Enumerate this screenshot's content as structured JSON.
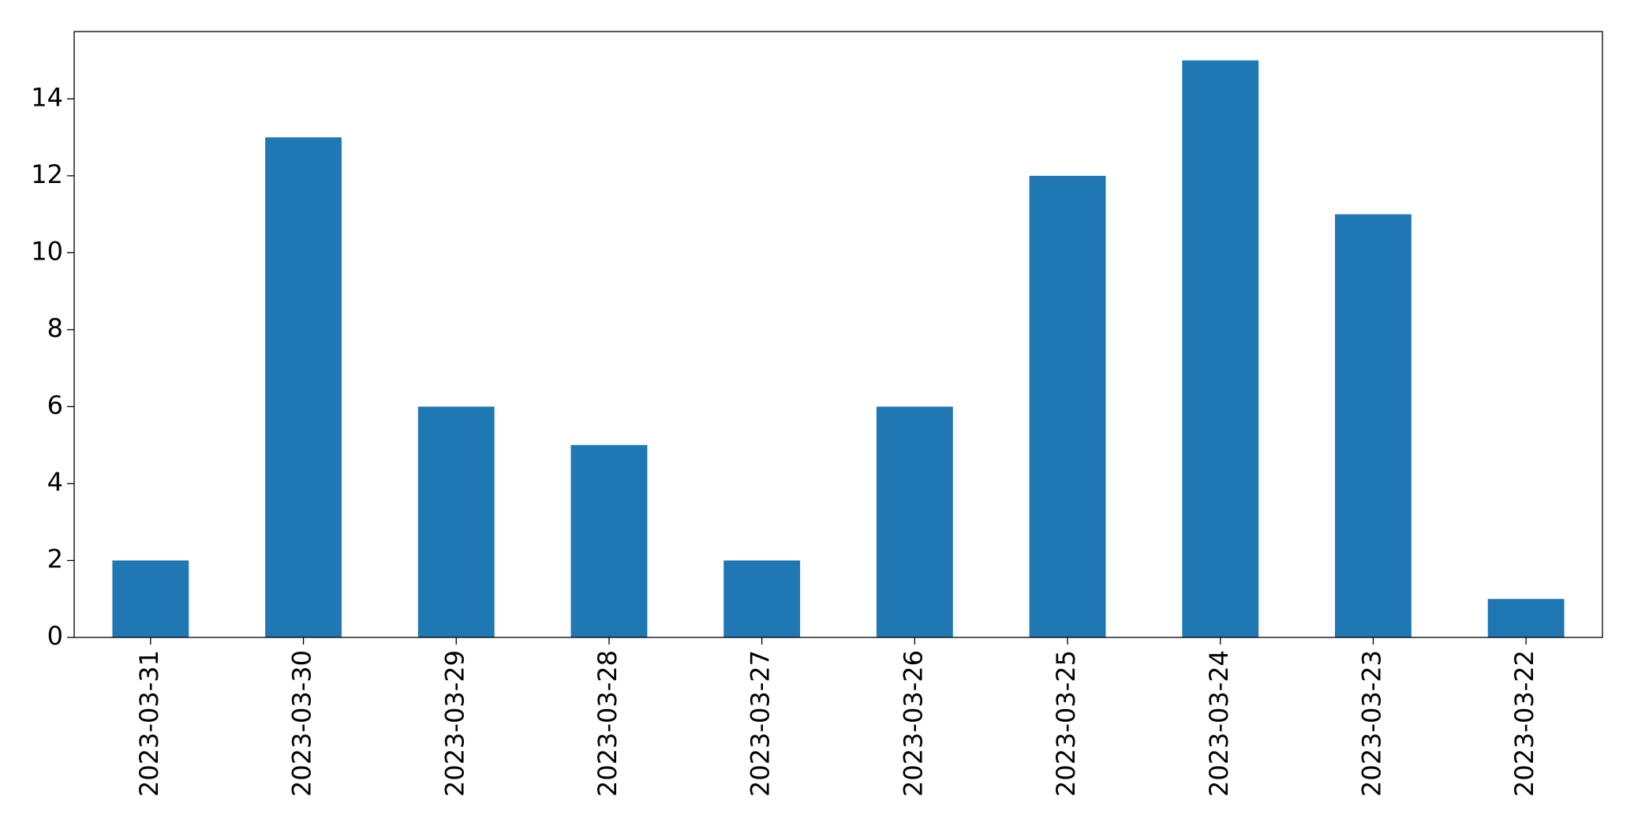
{
  "chart_data": {
    "type": "bar",
    "categories": [
      "2023-03-31",
      "2023-03-30",
      "2023-03-29",
      "2023-03-28",
      "2023-03-27",
      "2023-03-26",
      "2023-03-25",
      "2023-03-24",
      "2023-03-23",
      "2023-03-22"
    ],
    "values": [
      2,
      13,
      6,
      5,
      2,
      6,
      12,
      15,
      11,
      1
    ],
    "color": "#1f77b4",
    "ylim": [
      0,
      15.75
    ],
    "yticks": [
      0,
      2,
      4,
      6,
      8,
      10,
      12,
      14
    ],
    "grid": false
  }
}
